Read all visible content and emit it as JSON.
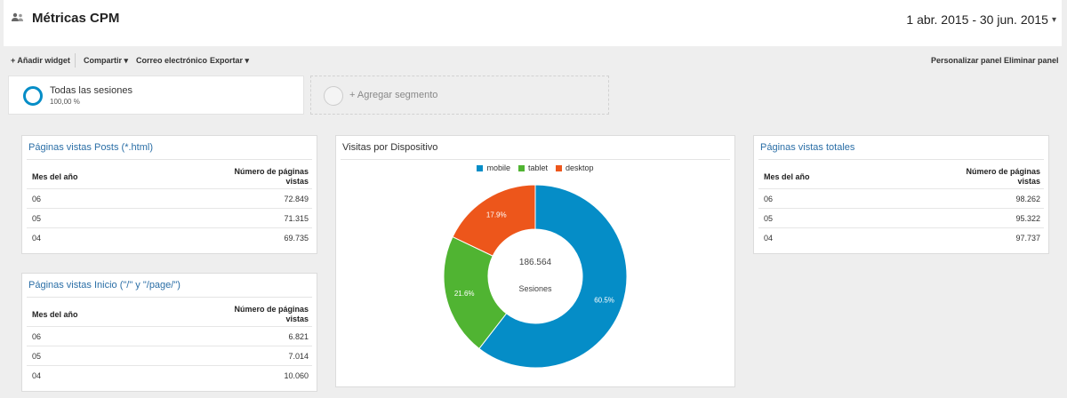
{
  "header": {
    "title": "Métricas CPM",
    "date_range": "1 abr. 2015 - 30 jun. 2015"
  },
  "toolbar": {
    "add_widget": "+ Añadir widget",
    "share": "Compartir",
    "email": "Correo electrónico",
    "export": "Exportar",
    "customize": "Personalizar panel",
    "delete": "Eliminar panel"
  },
  "segments": {
    "active_name": "Todas las sesiones",
    "active_percent": "100,00 %",
    "add_label": "+ Agregar segmento"
  },
  "widget_posts": {
    "title": "Páginas vistas Posts (*.html)",
    "col1": "Mes del año",
    "col2": "Número de páginas vistas",
    "rows": [
      {
        "month": "06",
        "value": "72.849"
      },
      {
        "month": "05",
        "value": "71.315"
      },
      {
        "month": "04",
        "value": "69.735"
      }
    ]
  },
  "widget_home": {
    "title": "Páginas vistas Inicio (\"/\" y \"/page/\")",
    "col1": "Mes del año",
    "col2": "Número de páginas vistas",
    "rows": [
      {
        "month": "06",
        "value": "6.821"
      },
      {
        "month": "05",
        "value": "7.014"
      },
      {
        "month": "04",
        "value": "10.060"
      }
    ]
  },
  "widget_total": {
    "title": "Páginas vistas totales",
    "col1": "Mes del año",
    "col2": "Número de páginas vistas",
    "rows": [
      {
        "month": "06",
        "value": "98.262"
      },
      {
        "month": "05",
        "value": "95.322"
      },
      {
        "month": "04",
        "value": "97.737"
      }
    ]
  },
  "widget_device": {
    "title": "Visitas por Dispositivo"
  },
  "chart_data": {
    "type": "pie",
    "title": "Visitas por Dispositivo",
    "donut": true,
    "center_value": "186.564",
    "center_label": "Sesiones",
    "legend_position": "top",
    "series": [
      {
        "name": "mobile",
        "value": 60.5,
        "label": "60.5%",
        "color": "#058dc7"
      },
      {
        "name": "tablet",
        "value": 21.6,
        "label": "21.6%",
        "color": "#50b432"
      },
      {
        "name": "desktop",
        "value": 17.9,
        "label": "17.9%",
        "color": "#ed561b"
      }
    ]
  }
}
